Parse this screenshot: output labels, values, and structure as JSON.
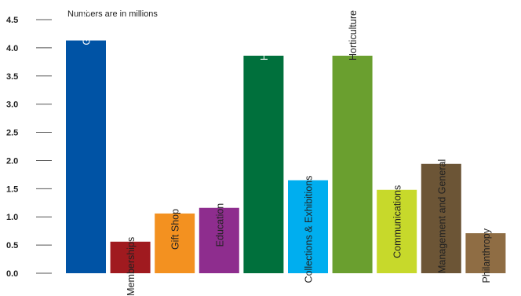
{
  "chart_data": {
    "type": "bar",
    "annotation": "Numbers are in millions",
    "ylim": [
      0,
      4.5
    ],
    "yticks": [
      "0.0",
      "0.5",
      "1.0",
      "1.5",
      "2.0",
      "2.5",
      "3.0",
      "3.5",
      "4.0",
      "4.5"
    ],
    "grid": false,
    "categories": [
      "Guest Services",
      "Memberships",
      "Gift Shop",
      "Education",
      "Hospitality",
      "Collections & Exhibitions",
      "Horticulture",
      "Communications",
      "Management  and General",
      "Philanthropy"
    ],
    "values": [
      4.13,
      0.56,
      1.06,
      1.16,
      3.86,
      1.65,
      3.86,
      1.48,
      1.94,
      0.71
    ],
    "colors": [
      "#0053a5",
      "#a01a1f",
      "#f39120",
      "#8e2d8e",
      "#00703c",
      "#00aeef",
      "#6a9f2f",
      "#c7d92b",
      "#6c5536",
      "#8f6d44"
    ],
    "label_colors": [
      "#ffffff",
      "#222222",
      "#222222",
      "#222222",
      "#ffffff",
      "#222222",
      "#222222",
      "#222222",
      "#222222",
      "#222222"
    ],
    "label_inside": [
      true,
      false,
      false,
      false,
      true,
      false,
      true,
      false,
      false,
      false
    ]
  }
}
